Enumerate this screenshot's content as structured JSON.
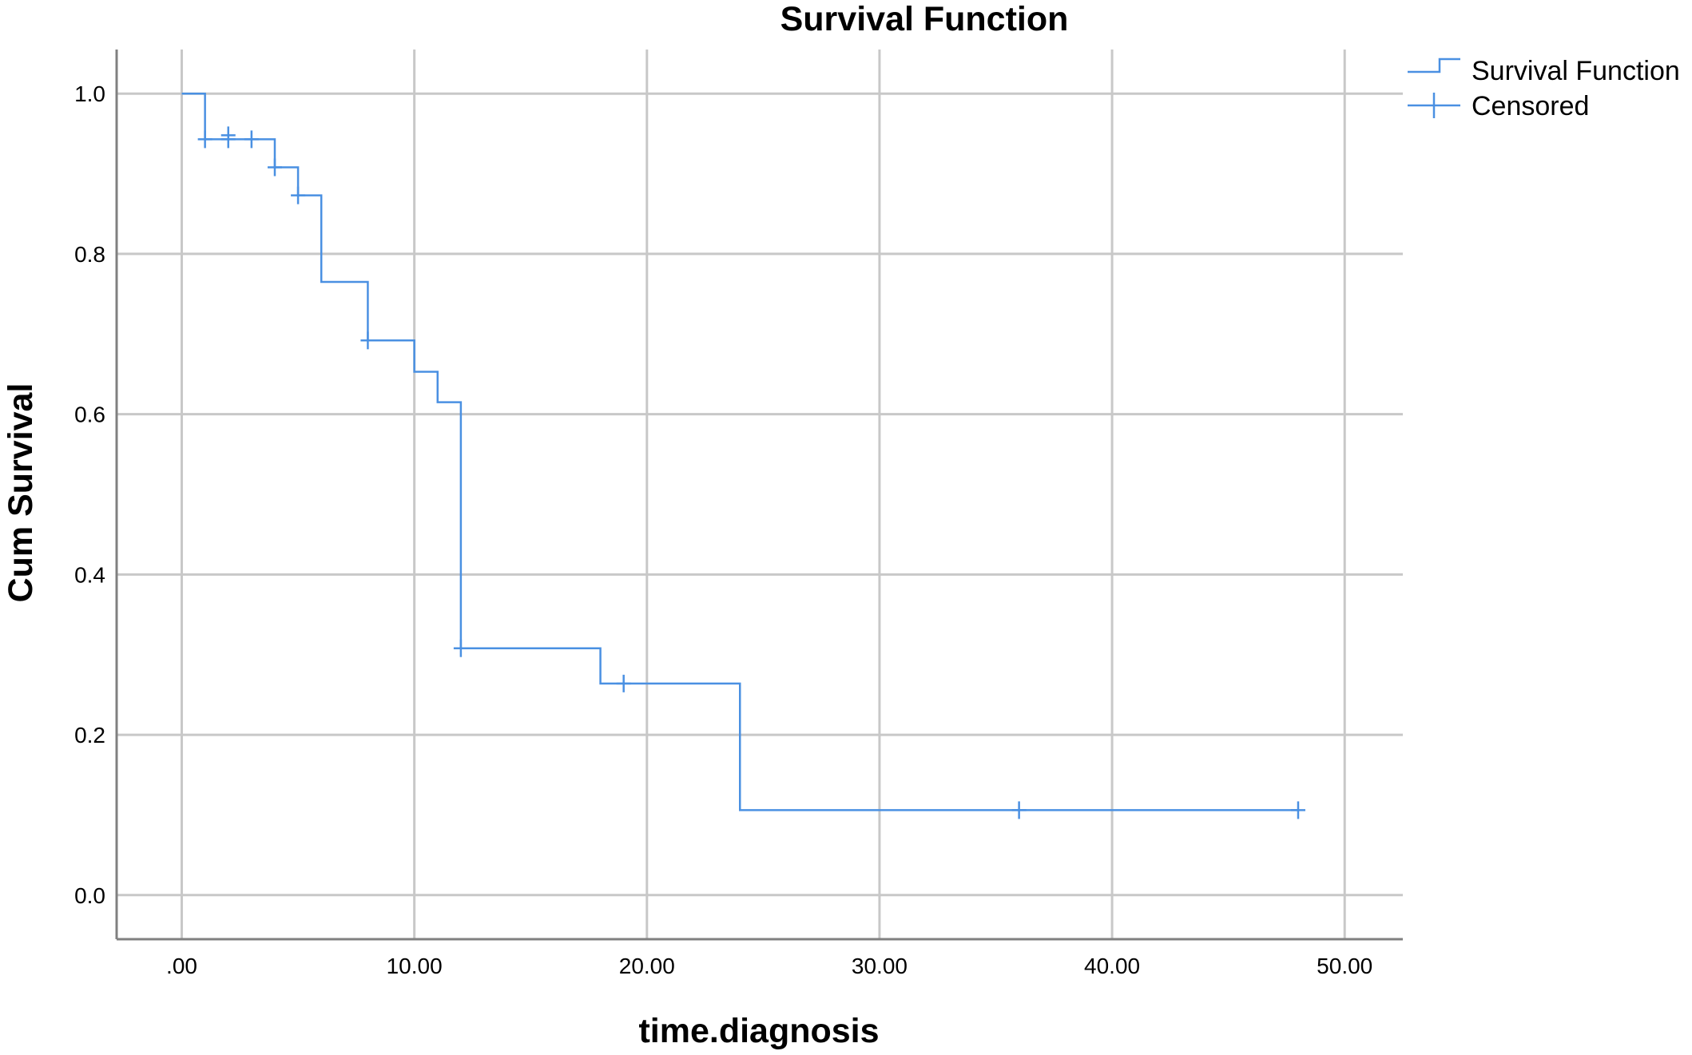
{
  "chart_data": {
    "type": "line",
    "title": "Survival Function",
    "xlabel": "time.diagnosis",
    "ylabel": "Cum Survival",
    "xlim": [
      -2.8,
      52.5
    ],
    "ylim": [
      -0.055,
      1.055
    ],
    "x_ticks": [
      0,
      10,
      20,
      30,
      40,
      50
    ],
    "x_tick_labels": [
      ".00",
      "10.00",
      "20.00",
      "30.00",
      "40.00",
      "50.00"
    ],
    "y_ticks": [
      0,
      0.2,
      0.4,
      0.6,
      0.8,
      1.0
    ],
    "y_tick_labels": [
      "0.0",
      "0.2",
      "0.4",
      "0.6",
      "0.8",
      "1.0"
    ],
    "grid": true,
    "legend_position": "top-right",
    "colors": {
      "series": "#4a90e2",
      "grid": "#c8c8c8",
      "axis": "#808080"
    },
    "series": [
      {
        "name": "Survival Function",
        "step": true,
        "x": [
          0,
          1,
          4,
          5,
          6,
          8,
          10,
          11,
          12,
          18,
          24,
          48
        ],
        "y": [
          1.0,
          0.943,
          0.908,
          0.873,
          0.765,
          0.692,
          0.653,
          0.615,
          0.308,
          0.264,
          0.106,
          0.106
        ]
      },
      {
        "name": "Censored",
        "marker": "+",
        "x": [
          1,
          2,
          2,
          3,
          4,
          5,
          8,
          12,
          19,
          36,
          48
        ],
        "y": [
          0.943,
          0.943,
          0.948,
          0.943,
          0.908,
          0.873,
          0.692,
          0.308,
          0.264,
          0.106,
          0.106
        ]
      }
    ]
  }
}
